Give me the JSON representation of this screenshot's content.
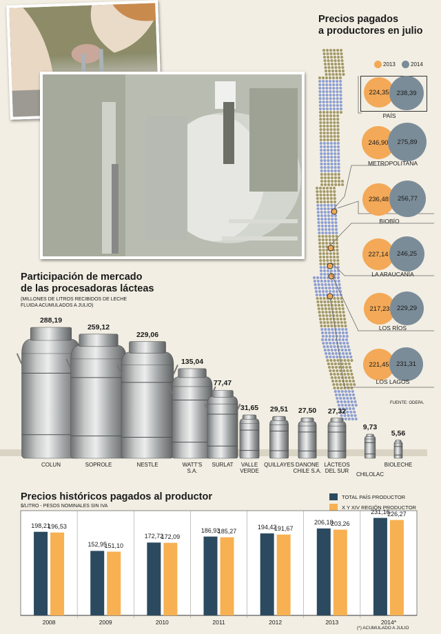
{
  "map_section": {
    "title_line1": "Precios pagados",
    "title_line2": "a productores en julio",
    "legend": [
      {
        "label": "2013",
        "color": "#f3a957"
      },
      {
        "label": "2014",
        "color": "#7b8c99"
      }
    ],
    "source": "FUENTE: ODEPA."
  },
  "market_section": {
    "title_line1": "Participación de mercado",
    "title_line2": "de las procesadoras lácteas",
    "subtitle_line1": "(MILLONES DE LITROS RECIBIDOS DE LECHE",
    "subtitle_line2": "FLUIDA ACUMULADOS A JULIO)"
  },
  "history_section": {
    "title": "Precios históricos pagados al productor",
    "subtitle": "$/LITRO - PESOS NOMINALES SIN IVA",
    "footnote": "(*) ACUMULADO A JULIO"
  },
  "chart_data": [
    {
      "type": "bar",
      "title": "Participación de mercado de las procesadoras lácteas",
      "subtitle": "(MILLONES DE LITROS RECIBIDOS DE LECHE FLUIDA ACUMULADOS A JULIO)",
      "categories": [
        "COLUN",
        "SOPROLE",
        "NESTLE",
        "WATT'S S.A.",
        "SURLAT",
        "VALLE VERDE",
        "QUILLAYES",
        "DANONE CHILE S.A.",
        "LÁCTEOS DEL SUR",
        "CHILOLAC",
        "BIOLECHE"
      ],
      "category_lines": [
        [
          "COLUN"
        ],
        [
          "SOPROLE"
        ],
        [
          "NESTLE"
        ],
        [
          "WATT'S",
          "S.A."
        ],
        [
          "SURLAT"
        ],
        [
          "VALLE",
          "VERDE"
        ],
        [
          "QUILLAYES"
        ],
        [
          "DANONE",
          "CHILE S.A."
        ],
        [
          "LÁCTEOS",
          "DEL SUR"
        ],
        [
          "CHILOLAC"
        ],
        [
          "BIOLECHE"
        ]
      ],
      "values": [
        288.19,
        259.12,
        229.06,
        135.04,
        77.47,
        31.65,
        29.51,
        27.5,
        27.32,
        9.73,
        5.56
      ],
      "value_labels": [
        "288,19",
        "259,12",
        "229,06",
        "135,04",
        "77,47",
        "31,65",
        "29,51",
        "27,50",
        "27,32",
        "9,73",
        "5,56"
      ]
    },
    {
      "type": "bar",
      "title": "Precios pagados a productores en julio",
      "categories": [
        "PAÍS",
        "METROPOLITANA",
        "BIOBÍO",
        "LA ARAUCANÍA",
        "LOS RÍOS",
        "LOS LAGOS"
      ],
      "series": [
        {
          "name": "2013",
          "values": [
            224.35,
            246.9,
            236.48,
            227.14,
            217.23,
            221.45
          ],
          "labels": [
            "224,35",
            "246,90",
            "236,48",
            "227,14",
            "217,23",
            "221,45"
          ],
          "color": "#f3a957"
        },
        {
          "name": "2014",
          "values": [
            238.39,
            275.89,
            256.77,
            246.25,
            229.29,
            231.31
          ],
          "labels": [
            "238,39",
            "275,89",
            "256,77",
            "246,25",
            "229,29",
            "231,31"
          ],
          "color": "#7b8c99"
        }
      ]
    },
    {
      "type": "bar",
      "title": "Precios históricos pagados al productor",
      "ylabel": "$/LITRO - PESOS NOMINALES SIN IVA",
      "categories": [
        "2008",
        "2009",
        "2010",
        "2011",
        "2012",
        "2013",
        "2014*"
      ],
      "series": [
        {
          "name": "TOTAL PAÍS PRODUCTOR",
          "values": [
            198.21,
            152.95,
            172.72,
            186.93,
            194.42,
            206.18,
            231.16
          ],
          "labels": [
            "198,21",
            "152,95",
            "172,72",
            "186,93",
            "194,42",
            "206,18",
            "231,16"
          ],
          "color": "#2c4a5f"
        },
        {
          "name": "X Y XIV REGIÓN PRODUCTOR",
          "values": [
            196.53,
            151.1,
            172.09,
            185.27,
            191.67,
            203.26,
            226.27
          ],
          "labels": [
            "196,53",
            "151,10",
            "172,09",
            "185,27",
            "191,67",
            "203,26",
            "226,27"
          ],
          "color": "#f7b152"
        }
      ],
      "ylim": [
        0,
        250
      ],
      "grid": false,
      "legend": "top-right"
    }
  ]
}
